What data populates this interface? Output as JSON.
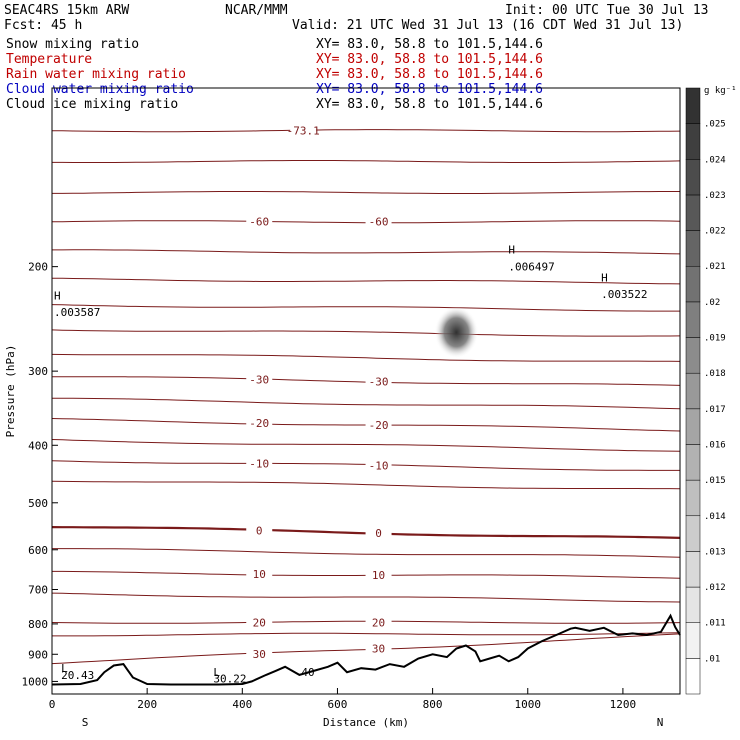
{
  "header": {
    "model": "SEAC4RS 15km ARW",
    "org": "NCAR/MMM",
    "init": "Init: 00 UTC Tue 30 Jul 13",
    "fcst": "Fcst:   45 h",
    "valid": "Valid: 21 UTC Wed 31 Jul 13 (16 CDT Wed 31 Jul 13)",
    "fields": [
      {
        "name": "Snow mixing ratio",
        "xy": "XY=  83.0, 58.8 to 101.5,144.6",
        "color": "#000000"
      },
      {
        "name": "Temperature",
        "xy": "XY=  83.0, 58.8 to 101.5,144.6",
        "color": "#c00000"
      },
      {
        "name": "Rain water mixing ratio",
        "xy": "XY=  83.0, 58.8 to 101.5,144.6",
        "color": "#c00000"
      },
      {
        "name": "Cloud water mixing ratio",
        "xy": "XY=  83.0, 58.8 to 101.5,144.6",
        "color": "#0000c0"
      },
      {
        "name": "Cloud ice mixing ratio",
        "xy": "XY=  83.0, 58.8 to 101.5,144.6",
        "color": "#000000"
      }
    ]
  },
  "chart_data": {
    "type": "line",
    "xlabel": "Distance (km)",
    "ylabel": "Pressure (hPa)",
    "xlim": [
      0,
      1320
    ],
    "ylim": [
      1050,
      100
    ],
    "yscale": "log",
    "x_ticks": [
      "0",
      "200",
      "400",
      "600",
      "800",
      "1000",
      "1200"
    ],
    "y_ticks": [
      "200",
      "300",
      "400",
      "500",
      "600",
      "700",
      "800",
      "900",
      "1000"
    ],
    "endpoints": {
      "left": "S",
      "right": "N"
    },
    "temperature_isotherms_C": [
      {
        "value": -73.1,
        "label": "-73.1",
        "x_km": [
          0,
          1320
        ],
        "p_hPa": [
          118,
          118
        ]
      },
      {
        "value": -70,
        "label": "",
        "x_km": [
          0,
          1320
        ],
        "p_hPa": [
          133,
          133
        ]
      },
      {
        "value": -65,
        "label": "",
        "x_km": [
          0,
          1320
        ],
        "p_hPa": [
          150,
          150
        ]
      },
      {
        "value": -60,
        "label": "-60",
        "x_km": [
          0,
          1320
        ],
        "p_hPa": [
          168,
          168
        ]
      },
      {
        "value": -55,
        "label": "",
        "x_km": [
          0,
          1320
        ],
        "p_hPa": [
          188,
          190
        ]
      },
      {
        "value": -50,
        "label": "",
        "x_km": [
          0,
          1320
        ],
        "p_hPa": [
          210,
          213
        ]
      },
      {
        "value": -45,
        "label": "",
        "x_km": [
          0,
          1320
        ],
        "p_hPa": [
          232,
          237
        ]
      },
      {
        "value": -40,
        "label": "",
        "x_km": [
          0,
          1320
        ],
        "p_hPa": [
          255,
          262
        ]
      },
      {
        "value": -35,
        "label": "",
        "x_km": [
          0,
          1320
        ],
        "p_hPa": [
          280,
          290
        ]
      },
      {
        "value": -30,
        "label": "-30",
        "x_km": [
          0,
          1320
        ],
        "p_hPa": [
          306,
          318
        ]
      },
      {
        "value": -25,
        "label": "",
        "x_km": [
          0,
          1320
        ],
        "p_hPa": [
          334,
          347
        ]
      },
      {
        "value": -20,
        "label": "-20",
        "x_km": [
          0,
          1320
        ],
        "p_hPa": [
          362,
          377
        ]
      },
      {
        "value": -15,
        "label": "",
        "x_km": [
          0,
          1320
        ],
        "p_hPa": [
          392,
          408
        ]
      },
      {
        "value": -10,
        "label": "-10",
        "x_km": [
          0,
          1320
        ],
        "p_hPa": [
          424,
          441
        ]
      },
      {
        "value": -5,
        "label": "",
        "x_km": [
          0,
          1320
        ],
        "p_hPa": [
          458,
          475
        ]
      },
      {
        "value": 0,
        "label": "0",
        "x_km": [
          0,
          1320
        ],
        "p_hPa": [
          548,
          575
        ]
      },
      {
        "value": 5,
        "label": "",
        "x_km": [
          0,
          1320
        ],
        "p_hPa": [
          598,
          618
        ]
      },
      {
        "value": 10,
        "label": "10",
        "x_km": [
          0,
          1320
        ],
        "p_hPa": [
          655,
          668
        ]
      },
      {
        "value": 15,
        "label": "",
        "x_km": [
          0,
          1320
        ],
        "p_hPa": [
          712,
          732
        ]
      },
      {
        "value": 20,
        "label": "20",
        "x_km": [
          0,
          1320
        ],
        "p_hPa": [
          795,
          795
        ]
      },
      {
        "value": 25,
        "label": "",
        "x_km": [
          0,
          1320
        ],
        "p_hPa": [
          835,
          830
        ]
      },
      {
        "value": 30,
        "label": "30",
        "x_km": [
          0,
          1320
        ],
        "p_hPa": [
          930,
          835
        ]
      }
    ],
    "terrain_hPa": {
      "x_km": [
        0,
        60,
        95,
        110,
        130,
        150,
        170,
        200,
        250,
        300,
        350,
        400,
        420,
        450,
        470,
        490,
        520,
        550,
        580,
        600,
        620,
        650,
        680,
        710,
        740,
        770,
        800,
        830,
        850,
        870,
        890,
        900,
        920,
        940,
        960,
        980,
        1000,
        1030,
        1060,
        1090,
        1100,
        1130,
        1160,
        1190,
        1220,
        1250,
        1280,
        1300,
        1310,
        1320
      ],
      "p_hPa": [
        1012,
        1010,
        995,
        965,
        940,
        935,
        985,
        1010,
        1012,
        1012,
        1012,
        1010,
        1000,
        975,
        960,
        945,
        975,
        960,
        945,
        930,
        965,
        950,
        955,
        935,
        945,
        915,
        900,
        910,
        880,
        870,
        890,
        925,
        915,
        905,
        925,
        910,
        880,
        855,
        835,
        815,
        812,
        822,
        812,
        835,
        830,
        835,
        825,
        775,
        810,
        835
      ]
    },
    "annotations": [
      {
        "text": "L",
        "x_km": 15,
        "p_hPa": 965
      },
      {
        "text": "20.43",
        "x_km": 15,
        "p_hPa": 990
      },
      {
        "text": "L",
        "x_km": 335,
        "p_hPa": 980
      },
      {
        "text": "30.22",
        "x_km": 335,
        "p_hPa": 1005
      },
      {
        "text": "40",
        "x_km": 520,
        "p_hPa": 980
      },
      {
        "text": "H",
        "x_km": 0,
        "p_hPa": 227
      },
      {
        "text": ".003587",
        "x_km": 0,
        "p_hPa": 242
      },
      {
        "text": "H",
        "x_km": 955,
        "p_hPa": 190
      },
      {
        "text": ".006497",
        "x_km": 955,
        "p_hPa": 203
      },
      {
        "text": "H",
        "x_km": 1150,
        "p_hPa": 212
      },
      {
        "text": ".003522",
        "x_km": 1150,
        "p_hPa": 226
      }
    ],
    "shaded_max": {
      "x_km": 850,
      "p_hPa": 258,
      "value_g_kg": 0.025
    },
    "colorbar": {
      "unit": "g kg⁻¹",
      "labels": [
        ".01",
        ".011",
        ".012",
        ".013",
        ".014",
        ".015",
        ".016",
        ".017",
        ".018",
        ".019",
        ".02",
        ".021",
        ".022",
        ".023",
        ".024",
        ".025"
      ]
    }
  }
}
